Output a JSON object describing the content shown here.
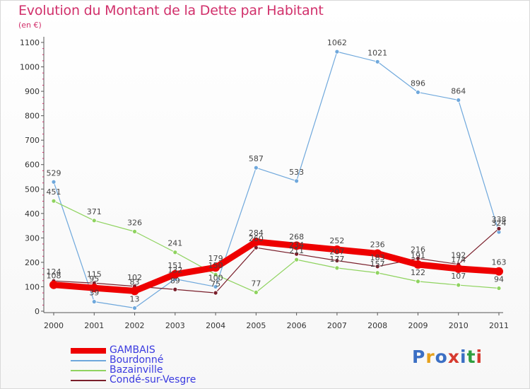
{
  "title": "Evolution du Montant de la Dette par Habitant",
  "subtitle": "(en €)",
  "brand": {
    "text": "Proxiti",
    "letter_colors": [
      "#3b6fc4",
      "#e6a11c",
      "#3b6fc4",
      "#d63a2f",
      "#3b6fc4",
      "#2f9f3f",
      "#d63a2f"
    ]
  },
  "chart_data": {
    "type": "line",
    "title": "Evolution du Montant de la Dette par Habitant",
    "ylabel": "(en €)",
    "xlabel": "",
    "x": [
      "2000",
      "2001",
      "2002",
      "2003",
      "2004",
      "2005",
      "2006",
      "2007",
      "2008",
      "2009",
      "2010",
      "2011"
    ],
    "ylim": [
      0,
      1100
    ],
    "yticks": [
      0,
      100,
      200,
      300,
      400,
      500,
      600,
      700,
      800,
      900,
      1000,
      1100
    ],
    "grid": false,
    "legend_position": "bottom-left",
    "series": [
      {
        "name": "GAMBAIS",
        "color": "#ee0000",
        "emphasis": true,
        "values": [
          108,
          95,
          83,
          151,
          179,
          284,
          268,
          252,
          236,
          191,
          174,
          163
        ]
      },
      {
        "name": "Bourdonné",
        "color": "#6fa8dc",
        "values": [
          529,
          39,
          13,
          132,
          100,
          587,
          533,
          1062,
          1021,
          896,
          864,
          324
        ]
      },
      {
        "name": "Bazainville",
        "color": "#8fd35f",
        "values": [
          451,
          371,
          326,
          241,
          150,
          77,
          211,
          177,
          157,
          122,
          107,
          94
        ]
      },
      {
        "name": "Condé-sur-Vesgre",
        "color": "#7a1f2b",
        "values": [
          124,
          115,
          102,
          89,
          75,
          260,
          234,
          207,
          183,
          216,
          192,
          338
        ]
      }
    ]
  }
}
